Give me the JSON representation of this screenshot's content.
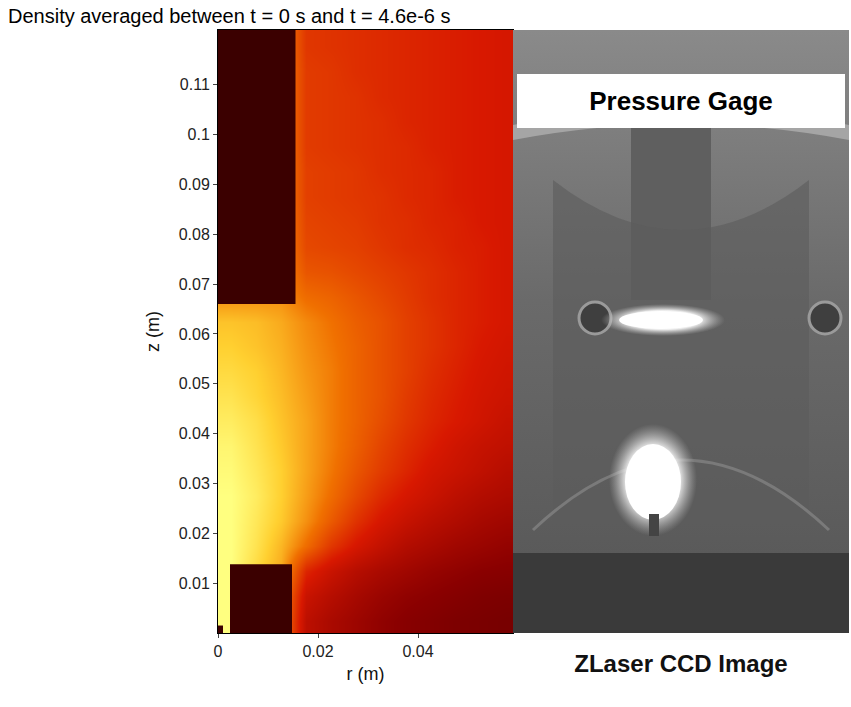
{
  "chart_data": {
    "type": "heatmap",
    "title": "Density averaged between t = 0 s and t = 4.6e-6 s",
    "x_label": "r (m)",
    "y_label": "z (m)",
    "xlim": [
      0,
      0.059
    ],
    "ylim": [
      0,
      0.121
    ],
    "xticks": [
      0,
      0.02,
      0.04
    ],
    "yticks": [
      0.01,
      0.02,
      0.03,
      0.04,
      0.05,
      0.06,
      0.07,
      0.08,
      0.09,
      0.1,
      0.11
    ],
    "zlim": [
      0,
      10
    ],
    "x": [
      0.0025,
      0.0075,
      0.0125,
      0.0175,
      0.0225,
      0.0275,
      0.0325,
      0.0375,
      0.0425,
      0.0475,
      0.0525,
      0.0575
    ],
    "y": [
      0.0025,
      0.0075,
      0.0125,
      0.0175,
      0.0225,
      0.0275,
      0.0325,
      0.0375,
      0.0425,
      0.0475,
      0.0525,
      0.0575,
      0.0625,
      0.0675,
      0.0725,
      0.0775,
      0.0825,
      0.0875,
      0.0925,
      0.0975,
      0.1025,
      0.1075,
      0.1125,
      0.1175,
      0.1225
    ],
    "cells": [
      [
        10,
        9,
        8,
        4.6,
        4.0,
        3.6,
        3.2,
        2.9,
        2.7,
        2.5,
        2.4,
        2.3
      ],
      [
        10,
        9,
        8,
        5.0,
        4.4,
        3.9,
        3.5,
        3.2,
        3.0,
        2.8,
        2.6,
        2.5
      ],
      [
        10,
        9.2,
        8.4,
        5.8,
        5.0,
        4.4,
        4.0,
        3.7,
        3.4,
        3.2,
        3.0,
        2.9
      ],
      [
        10,
        9.4,
        8.6,
        7.4,
        6.2,
        5.4,
        4.8,
        4.3,
        4.0,
        3.7,
        3.5,
        3.3
      ],
      [
        10,
        9.5,
        8.9,
        8.0,
        7.0,
        6.1,
        5.4,
        4.9,
        4.5,
        4.2,
        3.9,
        3.7
      ],
      [
        10,
        9.6,
        9.0,
        8.2,
        7.4,
        6.6,
        5.9,
        5.4,
        5.0,
        4.6,
        4.3,
        4.1
      ],
      [
        9.9,
        9.5,
        9.0,
        8.3,
        7.6,
        6.9,
        6.3,
        5.8,
        5.3,
        5.0,
        4.7,
        4.4
      ],
      [
        9.8,
        9.4,
        8.9,
        8.3,
        7.7,
        7.1,
        6.5,
        6.0,
        5.6,
        5.2,
        4.9,
        4.7
      ],
      [
        9.6,
        9.3,
        8.8,
        8.3,
        7.7,
        7.2,
        6.7,
        6.2,
        5.8,
        5.5,
        5.2,
        4.9
      ],
      [
        9.4,
        9.1,
        8.7,
        8.2,
        7.7,
        7.2,
        6.8,
        6.3,
        5.9,
        5.6,
        5.3,
        5.1
      ],
      [
        9.2,
        9.0,
        8.6,
        8.1,
        7.7,
        7.2,
        6.8,
        6.4,
        6.0,
        5.7,
        5.4,
        5.2
      ],
      [
        9.0,
        8.8,
        8.5,
        8.0,
        7.6,
        7.2,
        6.8,
        6.4,
        6.1,
        5.8,
        5.5,
        5.3
      ],
      [
        8.8,
        8.7,
        8.4,
        7.9,
        7.5,
        7.1,
        6.8,
        6.4,
        6.1,
        5.8,
        5.6,
        5.4
      ],
      [
        8,
        8,
        8,
        7.4,
        7.2,
        6.9,
        6.6,
        6.3,
        6.0,
        5.8,
        5.6,
        5.4
      ],
      [
        8,
        8,
        8,
        6.9,
        6.8,
        6.6,
        6.4,
        6.2,
        6.0,
        5.8,
        5.6,
        5.4
      ],
      [
        8,
        8,
        8,
        6.6,
        6.5,
        6.4,
        6.2,
        6.0,
        5.9,
        5.7,
        5.6,
        5.4
      ],
      [
        8,
        8,
        8,
        6.5,
        6.4,
        6.3,
        6.1,
        6.0,
        5.8,
        5.7,
        5.5,
        5.4
      ],
      [
        8,
        8,
        8,
        6.4,
        6.3,
        6.2,
        6.1,
        5.9,
        5.8,
        5.6,
        5.5,
        5.4
      ],
      [
        8,
        8,
        8,
        6.4,
        6.3,
        6.2,
        6.0,
        5.9,
        5.8,
        5.6,
        5.5,
        5.4
      ],
      [
        8,
        8,
        8,
        6.3,
        6.2,
        6.1,
        6.0,
        5.9,
        5.7,
        5.6,
        5.5,
        5.4
      ],
      [
        8,
        8,
        8,
        6.3,
        6.2,
        6.1,
        6.0,
        5.8,
        5.7,
        5.6,
        5.5,
        5.4
      ],
      [
        8,
        8,
        8,
        6.3,
        6.2,
        6.1,
        5.9,
        5.8,
        5.7,
        5.6,
        5.5,
        5.4
      ],
      [
        8,
        8,
        8,
        6.3,
        6.2,
        6.0,
        5.9,
        5.8,
        5.7,
        5.6,
        5.5,
        5.4
      ],
      [
        8,
        8,
        8,
        6.2,
        6.1,
        6.0,
        5.9,
        5.8,
        5.7,
        5.6,
        5.5,
        5.4
      ],
      [
        8,
        8,
        8,
        6.2,
        6.1,
        6.0,
        5.9,
        5.8,
        5.7,
        5.6,
        5.5,
        5.4
      ]
    ],
    "regions": [
      {
        "r": [
          0,
          0.0155
        ],
        "z": [
          0.066,
          0.121
        ],
        "color": "#3b0000"
      },
      {
        "r": [
          0.0024,
          0.0148
        ],
        "z": [
          0,
          0.0138
        ],
        "color": "#3b0000"
      },
      {
        "r": [
          0,
          0.001
        ],
        "z": [
          0,
          0.0015
        ],
        "color": "#3b0000"
      }
    ]
  },
  "image": {
    "label": "Pressure Gage",
    "caption": "ZLaser CCD Image"
  }
}
